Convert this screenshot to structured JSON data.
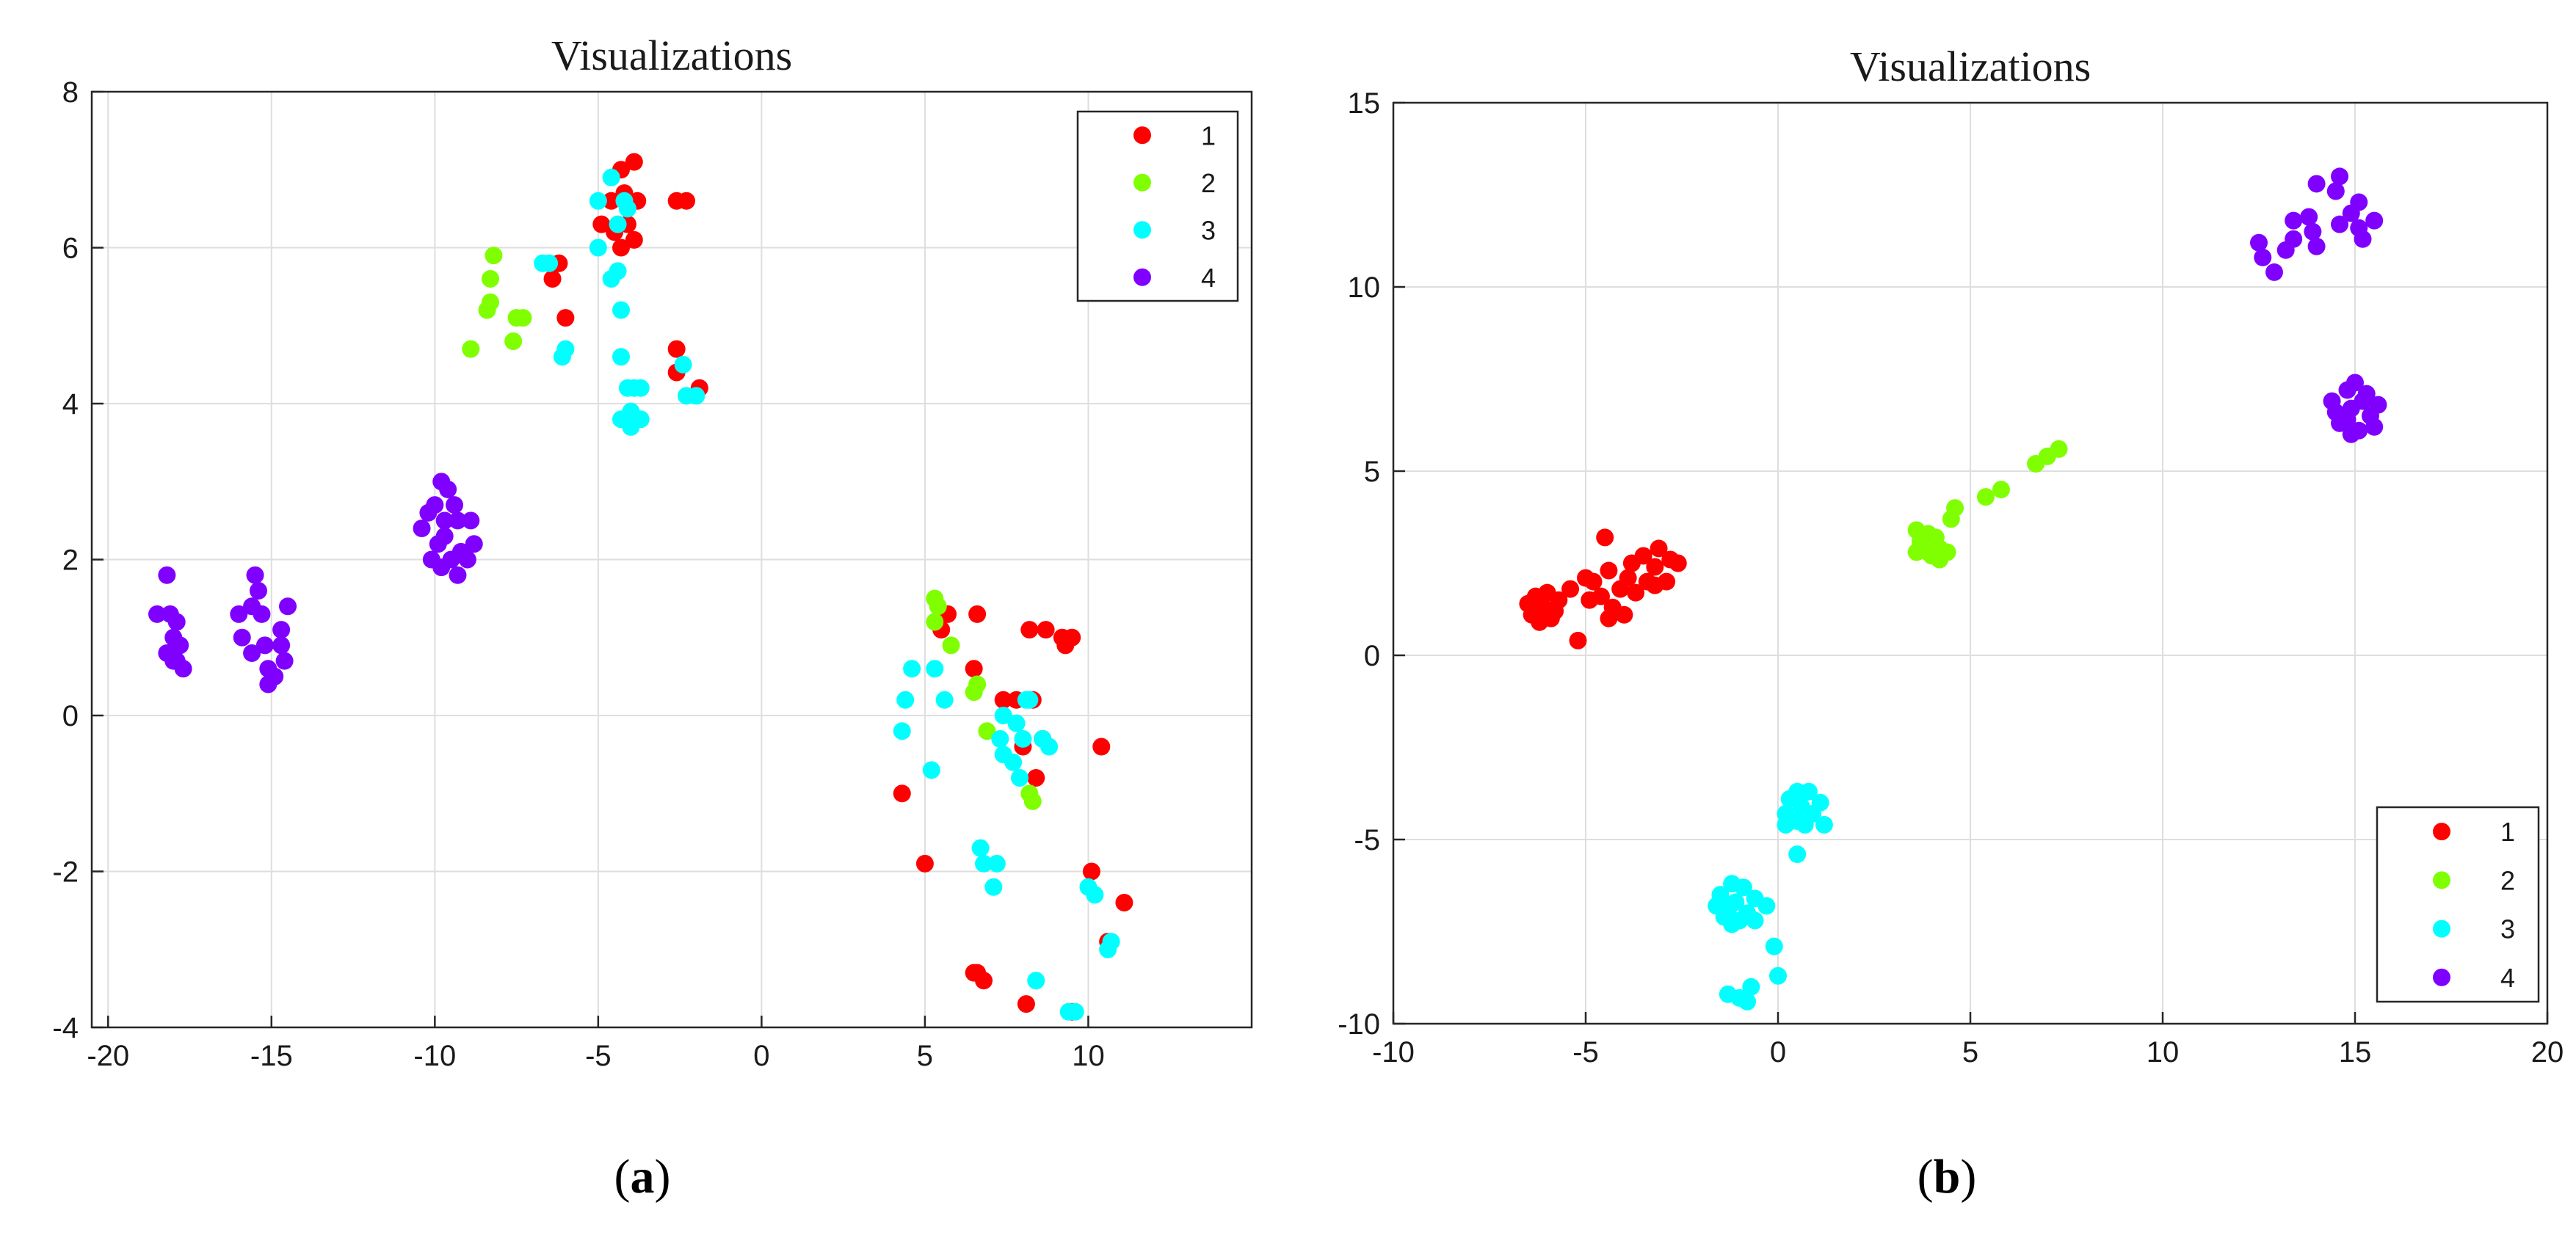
{
  "chart_data": [
    {
      "type": "scatter",
      "title": "Visualizations",
      "caption": "a",
      "xlabel": "",
      "ylabel": "",
      "xlim": [
        -20.5,
        15
      ],
      "ylim": [
        -4,
        8
      ],
      "xticks": [
        -20,
        -15,
        -10,
        -5,
        0,
        5,
        10
      ],
      "yticks": [
        -4,
        -2,
        0,
        2,
        4,
        6,
        8
      ],
      "grid": true,
      "legend": "top-right",
      "series": [
        {
          "name": "1",
          "color": "#ff0000",
          "points": [
            [
              -4.3,
              7.0
            ],
            [
              -3.9,
              7.1
            ],
            [
              -4.6,
              6.6
            ],
            [
              -4.2,
              6.7
            ],
            [
              -3.8,
              6.6
            ],
            [
              -4.9,
              6.3
            ],
            [
              -4.5,
              6.2
            ],
            [
              -4.1,
              6.3
            ],
            [
              -4.3,
              6.0
            ],
            [
              -3.9,
              6.1
            ],
            [
              -2.6,
              6.6
            ],
            [
              -2.3,
              6.6
            ],
            [
              -6.2,
              5.8
            ],
            [
              -6.4,
              5.6
            ],
            [
              -6.0,
              5.1
            ],
            [
              -2.6,
              4.7
            ],
            [
              -2.6,
              4.4
            ],
            [
              -1.9,
              4.2
            ],
            [
              5.7,
              1.3
            ],
            [
              5.5,
              1.1
            ],
            [
              6.6,
              1.3
            ],
            [
              8.2,
              1.1
            ],
            [
              8.7,
              1.1
            ],
            [
              9.2,
              1.0
            ],
            [
              9.5,
              1.0
            ],
            [
              9.3,
              0.9
            ],
            [
              6.5,
              0.6
            ],
            [
              7.4,
              0.2
            ],
            [
              8.3,
              0.2
            ],
            [
              7.8,
              0.2
            ],
            [
              8.6,
              -0.3
            ],
            [
              8.0,
              -0.4
            ],
            [
              10.4,
              -0.4
            ],
            [
              8.4,
              -0.8
            ],
            [
              4.3,
              -1.0
            ],
            [
              5.0,
              -1.9
            ],
            [
              10.1,
              -2.0
            ],
            [
              11.1,
              -2.4
            ],
            [
              10.6,
              -2.9
            ],
            [
              6.5,
              -3.3
            ],
            [
              6.6,
              -3.3
            ],
            [
              6.8,
              -3.4
            ],
            [
              8.1,
              -3.7
            ],
            [
              9.5,
              -3.8
            ]
          ]
        },
        {
          "name": "2",
          "color": "#7fff00",
          "points": [
            [
              -8.2,
              5.9
            ],
            [
              -8.3,
              5.6
            ],
            [
              -8.3,
              5.3
            ],
            [
              -8.4,
              5.2
            ],
            [
              -7.5,
              5.1
            ],
            [
              -7.3,
              5.1
            ],
            [
              -7.6,
              4.8
            ],
            [
              -8.9,
              4.7
            ],
            [
              5.3,
              1.5
            ],
            [
              5.4,
              1.4
            ],
            [
              5.3,
              1.2
            ],
            [
              5.8,
              0.9
            ],
            [
              6.6,
              0.4
            ],
            [
              6.5,
              0.3
            ],
            [
              6.9,
              -0.2
            ],
            [
              8.2,
              -1.0
            ],
            [
              8.3,
              -1.1
            ]
          ]
        },
        {
          "name": "3",
          "color": "#00ffff",
          "points": [
            [
              -4.6,
              6.9
            ],
            [
              -4.2,
              6.6
            ],
            [
              -4.1,
              6.5
            ],
            [
              -5.0,
              6.6
            ],
            [
              -4.4,
              6.3
            ],
            [
              -6.5,
              5.8
            ],
            [
              -6.7,
              5.8
            ],
            [
              -5.0,
              6.0
            ],
            [
              -4.6,
              5.6
            ],
            [
              -4.4,
              5.7
            ],
            [
              -4.3,
              5.2
            ],
            [
              -6.0,
              4.7
            ],
            [
              -6.1,
              4.6
            ],
            [
              -4.3,
              4.6
            ],
            [
              -2.4,
              4.5
            ],
            [
              -4.1,
              4.2
            ],
            [
              -3.9,
              4.2
            ],
            [
              -3.7,
              4.2
            ],
            [
              -2.3,
              4.1
            ],
            [
              -2.0,
              4.1
            ],
            [
              -4.0,
              3.9
            ],
            [
              -4.3,
              3.8
            ],
            [
              -4.0,
              3.7
            ],
            [
              -3.7,
              3.8
            ],
            [
              4.6,
              0.6
            ],
            [
              5.3,
              0.6
            ],
            [
              4.4,
              0.2
            ],
            [
              5.6,
              0.2
            ],
            [
              7.4,
              0.0
            ],
            [
              8.1,
              0.2
            ],
            [
              8.2,
              0.2
            ],
            [
              7.8,
              -0.1
            ],
            [
              4.3,
              -0.2
            ],
            [
              8.0,
              -0.3
            ],
            [
              7.3,
              -0.3
            ],
            [
              7.4,
              -0.5
            ],
            [
              7.7,
              -0.6
            ],
            [
              7.9,
              -0.8
            ],
            [
              8.6,
              -0.3
            ],
            [
              8.8,
              -0.4
            ],
            [
              5.2,
              -0.7
            ],
            [
              6.7,
              -1.7
            ],
            [
              6.8,
              -1.9
            ],
            [
              7.2,
              -1.9
            ],
            [
              7.1,
              -2.2
            ],
            [
              10.0,
              -2.2
            ],
            [
              10.2,
              -2.3
            ],
            [
              10.6,
              -3.0
            ],
            [
              10.7,
              -2.9
            ],
            [
              8.4,
              -3.4
            ],
            [
              9.4,
              -3.8
            ],
            [
              9.6,
              -3.8
            ]
          ]
        },
        {
          "name": "4",
          "color": "#8000ff",
          "points": [
            [
              -18.2,
              1.8
            ],
            [
              -18.5,
              1.3
            ],
            [
              -18.1,
              1.3
            ],
            [
              -17.9,
              1.2
            ],
            [
              -18.0,
              1.0
            ],
            [
              -17.8,
              0.9
            ],
            [
              -18.2,
              0.8
            ],
            [
              -18.0,
              0.7
            ],
            [
              -17.7,
              0.6
            ],
            [
              -17.9,
              0.7
            ],
            [
              -15.5,
              1.8
            ],
            [
              -15.4,
              1.6
            ],
            [
              -15.6,
              1.4
            ],
            [
              -16.0,
              1.3
            ],
            [
              -15.3,
              1.3
            ],
            [
              -14.5,
              1.4
            ],
            [
              -14.7,
              1.1
            ],
            [
              -15.9,
              1.0
            ],
            [
              -15.2,
              0.9
            ],
            [
              -14.7,
              0.9
            ],
            [
              -15.6,
              0.8
            ],
            [
              -14.6,
              0.7
            ],
            [
              -15.1,
              0.6
            ],
            [
              -14.9,
              0.5
            ],
            [
              -15.1,
              0.4
            ],
            [
              -9.8,
              3.0
            ],
            [
              -9.6,
              2.9
            ],
            [
              -10.0,
              2.7
            ],
            [
              -9.4,
              2.7
            ],
            [
              -10.2,
              2.6
            ],
            [
              -9.7,
              2.5
            ],
            [
              -9.3,
              2.5
            ],
            [
              -8.9,
              2.5
            ],
            [
              -10.4,
              2.4
            ],
            [
              -9.7,
              2.3
            ],
            [
              -9.9,
              2.2
            ],
            [
              -9.2,
              2.1
            ],
            [
              -8.8,
              2.2
            ],
            [
              -10.1,
              2.0
            ],
            [
              -9.5,
              2.0
            ],
            [
              -9.8,
              1.9
            ],
            [
              -9.3,
              1.8
            ],
            [
              -9.0,
              2.0
            ]
          ]
        }
      ]
    },
    {
      "type": "scatter",
      "title": "Visualizations",
      "caption": "b",
      "xlabel": "",
      "ylabel": "",
      "xlim": [
        -10,
        20
      ],
      "ylim": [
        -10,
        15
      ],
      "xticks": [
        -10,
        -5,
        0,
        5,
        10,
        15,
        20
      ],
      "yticks": [
        -10,
        -5,
        0,
        5,
        10,
        15
      ],
      "grid": true,
      "legend": "bottom-right",
      "series": [
        {
          "name": "1",
          "color": "#ff0000",
          "points": [
            [
              -4.5,
              3.2
            ],
            [
              -3.1,
              2.9
            ],
            [
              -3.5,
              2.7
            ],
            [
              -2.8,
              2.6
            ],
            [
              -3.8,
              2.5
            ],
            [
              -3.2,
              2.4
            ],
            [
              -4.4,
              2.3
            ],
            [
              -2.6,
              2.5
            ],
            [
              -5.0,
              2.1
            ],
            [
              -3.9,
              2.1
            ],
            [
              -3.4,
              2.0
            ],
            [
              -4.8,
              2.0
            ],
            [
              -2.9,
              2.0
            ],
            [
              -4.1,
              1.8
            ],
            [
              -3.7,
              1.7
            ],
            [
              -4.6,
              1.6
            ],
            [
              -3.2,
              1.9
            ],
            [
              -5.4,
              1.8
            ],
            [
              -4.9,
              1.5
            ],
            [
              -6.0,
              1.7
            ],
            [
              -6.3,
              1.6
            ],
            [
              -6.5,
              1.4
            ],
            [
              -5.7,
              1.5
            ],
            [
              -4.3,
              1.3
            ],
            [
              -6.1,
              1.3
            ],
            [
              -5.8,
              1.2
            ],
            [
              -6.4,
              1.1
            ],
            [
              -4.0,
              1.1
            ],
            [
              -4.4,
              1.0
            ],
            [
              -6.2,
              0.9
            ],
            [
              -5.9,
              1.0
            ],
            [
              -5.2,
              0.4
            ]
          ]
        },
        {
          "name": "2",
          "color": "#7fff00",
          "points": [
            [
              7.3,
              5.6
            ],
            [
              7.0,
              5.4
            ],
            [
              6.7,
              5.2
            ],
            [
              5.8,
              4.5
            ],
            [
              5.4,
              4.3
            ],
            [
              4.6,
              4.0
            ],
            [
              4.5,
              3.7
            ],
            [
              3.6,
              3.4
            ],
            [
              3.9,
              3.3
            ],
            [
              4.1,
              3.2
            ],
            [
              3.7,
              3.1
            ],
            [
              4.2,
              2.9
            ],
            [
              3.9,
              2.8
            ],
            [
              4.4,
              2.8
            ],
            [
              3.6,
              2.8
            ],
            [
              4.0,
              2.7
            ],
            [
              4.2,
              2.6
            ]
          ]
        },
        {
          "name": "3",
          "color": "#00ffff",
          "points": [
            [
              0.5,
              -3.7
            ],
            [
              0.8,
              -3.7
            ],
            [
              0.3,
              -3.9
            ],
            [
              1.1,
              -4.0
            ],
            [
              0.6,
              -4.1
            ],
            [
              0.2,
              -4.3
            ],
            [
              0.9,
              -4.3
            ],
            [
              0.5,
              -4.5
            ],
            [
              1.2,
              -4.6
            ],
            [
              0.7,
              -4.6
            ],
            [
              0.2,
              -4.6
            ],
            [
              0.5,
              -5.4
            ],
            [
              -1.2,
              -6.2
            ],
            [
              -0.9,
              -6.3
            ],
            [
              -1.5,
              -6.5
            ],
            [
              -0.6,
              -6.6
            ],
            [
              -1.1,
              -6.7
            ],
            [
              -0.3,
              -6.8
            ],
            [
              -1.6,
              -6.8
            ],
            [
              -1.3,
              -6.9
            ],
            [
              -0.8,
              -7.0
            ],
            [
              -1.4,
              -7.1
            ],
            [
              -1.0,
              -7.2
            ],
            [
              -0.6,
              -7.2
            ],
            [
              -1.2,
              -7.3
            ],
            [
              -0.1,
              -7.9
            ],
            [
              0.0,
              -8.7
            ],
            [
              -0.7,
              -9.0
            ],
            [
              -1.3,
              -9.2
            ],
            [
              -1.0,
              -9.3
            ],
            [
              -0.8,
              -9.4
            ]
          ]
        },
        {
          "name": "4",
          "color": "#8000ff",
          "points": [
            [
              14.6,
              13.0
            ],
            [
              14.0,
              12.8
            ],
            [
              14.5,
              12.6
            ],
            [
              15.1,
              12.3
            ],
            [
              13.8,
              11.9
            ],
            [
              14.9,
              12.0
            ],
            [
              15.5,
              11.8
            ],
            [
              13.4,
              11.8
            ],
            [
              14.6,
              11.7
            ],
            [
              15.1,
              11.6
            ],
            [
              13.9,
              11.5
            ],
            [
              13.4,
              11.3
            ],
            [
              15.2,
              11.3
            ],
            [
              12.5,
              11.2
            ],
            [
              13.2,
              11.0
            ],
            [
              12.6,
              10.8
            ],
            [
              14.0,
              11.1
            ],
            [
              12.9,
              10.4
            ],
            [
              15.0,
              7.4
            ],
            [
              14.8,
              7.2
            ],
            [
              15.3,
              7.1
            ],
            [
              14.4,
              6.9
            ],
            [
              15.2,
              6.9
            ],
            [
              15.6,
              6.8
            ],
            [
              14.5,
              6.6
            ],
            [
              14.9,
              6.7
            ],
            [
              15.4,
              6.5
            ],
            [
              14.8,
              6.4
            ],
            [
              14.6,
              6.3
            ],
            [
              15.5,
              6.2
            ],
            [
              15.1,
              6.1
            ],
            [
              14.9,
              6.0
            ]
          ]
        }
      ]
    }
  ]
}
